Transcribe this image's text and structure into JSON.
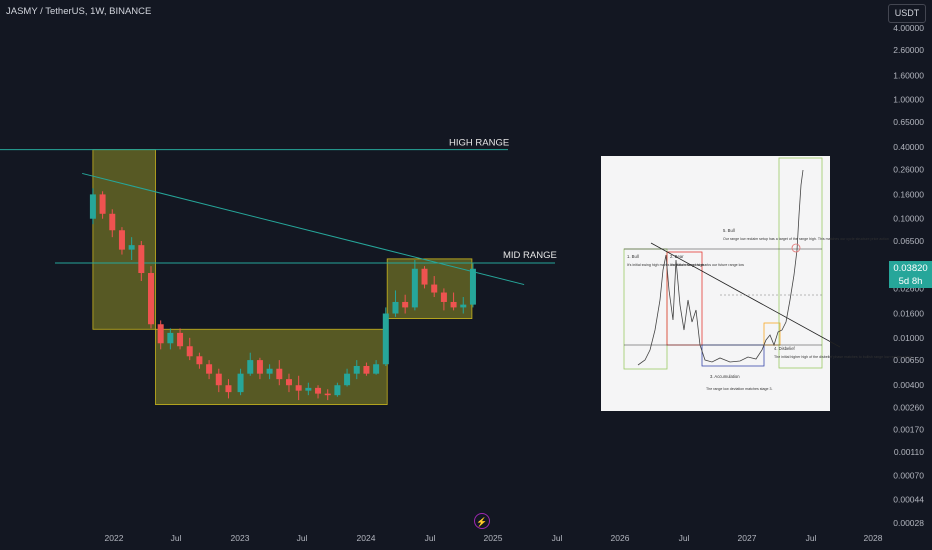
{
  "header": {
    "title": "JASMY / TetherUS, 1W, BINANCE",
    "currency_button": "USDT"
  },
  "price_badge": {
    "price": "0.03820",
    "countdown": "5d 8h"
  },
  "annotations": {
    "high_range": "HIGH RANGE",
    "mid_range": "MID RANGE"
  },
  "price_scale": {
    "ticks": [
      "4.00000",
      "2.60000",
      "1.60000",
      "1.00000",
      "0.65000",
      "0.40000",
      "0.26000",
      "0.16000",
      "0.10000",
      "0.06500",
      "0.04000",
      "0.02600",
      "0.01600",
      "0.01000",
      "0.00650",
      "0.00400",
      "0.00260",
      "0.00170",
      "0.00110",
      "0.00070",
      "0.00044",
      "0.00028"
    ]
  },
  "time_scale": {
    "ticks": [
      "2022",
      "Jul",
      "2023",
      "Jul",
      "2024",
      "Jul",
      "2025",
      "Jul",
      "2026",
      "Jul",
      "2027",
      "Jul",
      "2028"
    ]
  },
  "inset_chart": {
    "labels": {
      "bull1": "1. Bull",
      "bull1_note": "It's initial swing high marks our future range high",
      "bear": "2. Bear",
      "bear_note": "It's initial swing low marks our future range low",
      "accumulation": "3. Accumulation",
      "accumulation_note": "The range low deviation matches stage 3.",
      "bull5": "5. Bull",
      "bull5_note": "Our range low reclaim setup has a target of the range high. This matches our cycle structure price action",
      "disbelief": "4. Disbelief",
      "disbelief_note": "The initial higher high of the disbelief phase matches to bullish range low reclaim setup"
    }
  },
  "chart_data": {
    "type": "candlestick",
    "symbol": "JASMY / TetherUS",
    "interval": "1W",
    "exchange": "BINANCE",
    "y_scale": "log",
    "last_price": 0.0382,
    "zones": [
      {
        "label": "",
        "x_start": "2021-11",
        "x_end": "2022-05",
        "y_low": 0.0118,
        "y_high": 0.38
      },
      {
        "label": "",
        "x_start": "2022-05",
        "x_end": "2024-03",
        "y_low": 0.00275,
        "y_high": 0.0118
      },
      {
        "label": "",
        "x_start": "2024-03",
        "x_end": "2024-11",
        "y_low": 0.0145,
        "y_high": 0.046
      }
    ],
    "levels": [
      {
        "label": "HIGH RANGE",
        "value": 0.38
      },
      {
        "label": "MID RANGE",
        "value": 0.0425
      }
    ],
    "trendline": {
      "from": [
        "2021-10",
        0.24
      ],
      "to": [
        "2025-04",
        0.028
      ]
    },
    "candles": [
      [
        "2021-11-01",
        0.1,
        0.18,
        0.09,
        0.16
      ],
      [
        "2021-11-29",
        0.16,
        0.17,
        0.1,
        0.11
      ],
      [
        "2021-12-27",
        0.11,
        0.12,
        0.07,
        0.08
      ],
      [
        "2022-01-24",
        0.08,
        0.085,
        0.05,
        0.055
      ],
      [
        "2022-02-21",
        0.055,
        0.07,
        0.045,
        0.06
      ],
      [
        "2022-03-21",
        0.06,
        0.065,
        0.03,
        0.035
      ],
      [
        "2022-04-18",
        0.035,
        0.04,
        0.012,
        0.013
      ],
      [
        "2022-05-16",
        0.013,
        0.014,
        0.008,
        0.009
      ],
      [
        "2022-06-13",
        0.009,
        0.012,
        0.008,
        0.011
      ],
      [
        "2022-07-11",
        0.011,
        0.012,
        0.008,
        0.0085
      ],
      [
        "2022-08-08",
        0.0085,
        0.01,
        0.0065,
        0.007
      ],
      [
        "2022-09-05",
        0.007,
        0.0075,
        0.0055,
        0.006
      ],
      [
        "2022-10-03",
        0.006,
        0.0065,
        0.0045,
        0.005
      ],
      [
        "2022-10-31",
        0.005,
        0.0055,
        0.0035,
        0.004
      ],
      [
        "2022-11-28",
        0.004,
        0.0045,
        0.0031,
        0.0035
      ],
      [
        "2023-01-02",
        0.0035,
        0.0055,
        0.0033,
        0.005
      ],
      [
        "2023-01-30",
        0.005,
        0.0075,
        0.0048,
        0.0065
      ],
      [
        "2023-02-27",
        0.0065,
        0.0068,
        0.0045,
        0.005
      ],
      [
        "2023-03-27",
        0.005,
        0.006,
        0.0045,
        0.0055
      ],
      [
        "2023-04-24",
        0.0055,
        0.0065,
        0.004,
        0.0045
      ],
      [
        "2023-05-22",
        0.0045,
        0.005,
        0.0035,
        0.004
      ],
      [
        "2023-06-19",
        0.004,
        0.0048,
        0.003,
        0.0036
      ],
      [
        "2023-07-17",
        0.0036,
        0.0042,
        0.0033,
        0.0038
      ],
      [
        "2023-08-14",
        0.0038,
        0.004,
        0.0031,
        0.0034
      ],
      [
        "2023-09-11",
        0.0034,
        0.0037,
        0.003,
        0.0033
      ],
      [
        "2023-10-09",
        0.0033,
        0.0042,
        0.0032,
        0.004
      ],
      [
        "2023-11-06",
        0.004,
        0.0055,
        0.0039,
        0.005
      ],
      [
        "2023-12-04",
        0.005,
        0.0065,
        0.0045,
        0.0058
      ],
      [
        "2024-01-01",
        0.0058,
        0.0062,
        0.0048,
        0.005
      ],
      [
        "2024-01-29",
        0.005,
        0.0065,
        0.0049,
        0.006
      ],
      [
        "2024-02-26",
        0.006,
        0.018,
        0.0058,
        0.016
      ],
      [
        "2024-03-25",
        0.016,
        0.025,
        0.015,
        0.02
      ],
      [
        "2024-04-22",
        0.02,
        0.023,
        0.016,
        0.018
      ],
      [
        "2024-05-20",
        0.018,
        0.045,
        0.017,
        0.038
      ],
      [
        "2024-06-17",
        0.038,
        0.04,
        0.026,
        0.028
      ],
      [
        "2024-07-15",
        0.028,
        0.033,
        0.022,
        0.024
      ],
      [
        "2024-08-12",
        0.024,
        0.026,
        0.017,
        0.02
      ],
      [
        "2024-09-09",
        0.02,
        0.024,
        0.017,
        0.018
      ],
      [
        "2024-10-07",
        0.018,
        0.022,
        0.016,
        0.019
      ],
      [
        "2024-11-04",
        0.019,
        0.042,
        0.018,
        0.038
      ]
    ]
  }
}
